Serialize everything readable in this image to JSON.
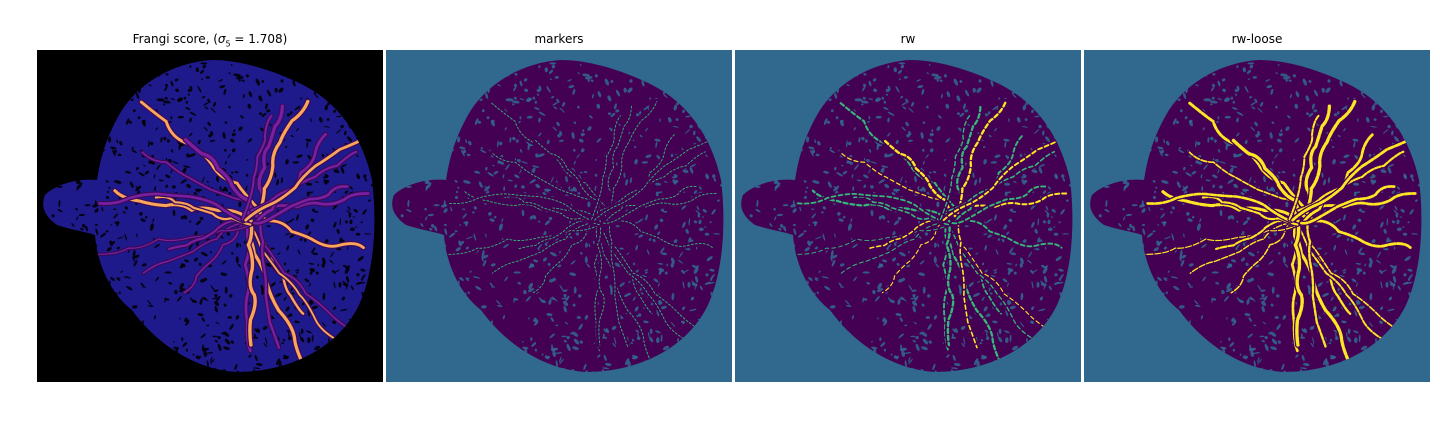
{
  "figure": {
    "panels": [
      {
        "title_prefix": "Frangi score, (",
        "title_sigma": "σ",
        "title_sub": "5",
        "title_suffix": " = 1.708)",
        "colormap": "magma"
      },
      {
        "title": "markers",
        "colormap": "viridis"
      },
      {
        "title": "rw",
        "colormap": "viridis"
      },
      {
        "title": "rw-loose",
        "colormap": "viridis"
      }
    ]
  },
  "colors": {
    "frangi_background": "#000000",
    "frangi_tissue": "#1e1a8c",
    "frangi_vessel_low": "#7a1fa0",
    "frangi_vessel_high": "#f9a55a",
    "seg_background": "#31688e",
    "seg_tissue": "#440154",
    "seg_marker": "#35b779",
    "seg_vessel": "#fde725"
  }
}
